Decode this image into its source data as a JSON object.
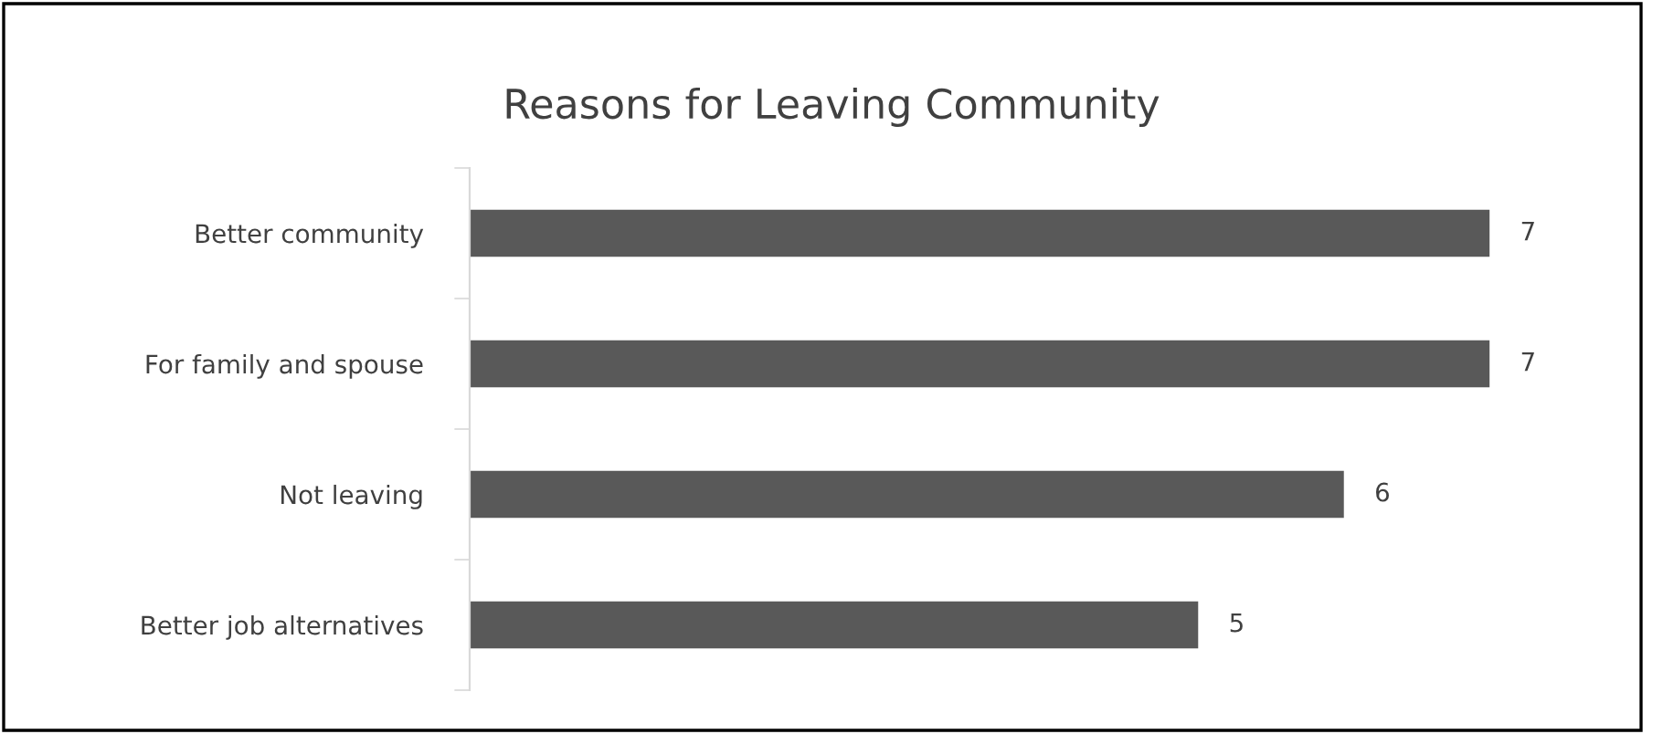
{
  "chart_data": {
    "type": "bar",
    "orientation": "horizontal",
    "title": "Reasons for Leaving Community",
    "categories": [
      "Better community",
      "For family and spouse",
      "Not leaving",
      "Better job alternatives"
    ],
    "values": [
      7,
      7,
      6,
      5
    ],
    "color": "#595959",
    "data_labels": true,
    "tick_labels": "y",
    "grid": false,
    "legend": false
  }
}
